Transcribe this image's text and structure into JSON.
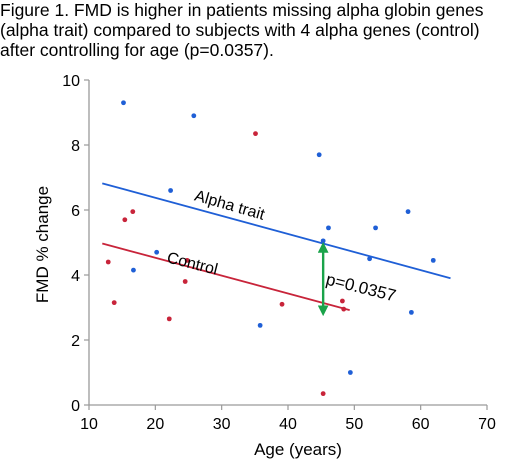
{
  "caption": {
    "lines": [
      "Figure 1. FMD is higher in patients missing alpha globin genes",
      "(alpha trait) compared to subjects with 4 alpha genes (control)",
      "after controlling for age (p=0.0357)."
    ]
  },
  "colors": {
    "alpha_trait": "#1f5fd6",
    "control": "#c8243a",
    "significance_arrow": "#1aa34a",
    "axis": "#9a9a9a"
  },
  "chart_data": {
    "type": "scatter",
    "xlabel": "Age (years)",
    "ylabel": "FMD % change",
    "xlim": [
      10,
      70
    ],
    "ylim": [
      0,
      10
    ],
    "x_ticks": [
      "10",
      "20",
      "30",
      "40",
      "50",
      "60",
      "70"
    ],
    "y_ticks": [
      "0",
      "2",
      "4",
      "6",
      "8",
      "10"
    ],
    "grid": false,
    "series": [
      {
        "name": "Alpha trait",
        "color": "#1f5fd6",
        "points": [
          [
            15.2,
            9.3
          ],
          [
            16.7,
            4.15
          ],
          [
            20.2,
            4.7
          ],
          [
            22.3,
            6.6
          ],
          [
            25.8,
            8.9
          ],
          [
            35.8,
            2.45
          ],
          [
            44.7,
            7.7
          ],
          [
            45.3,
            5.05
          ],
          [
            46.1,
            5.45
          ],
          [
            49.4,
            1.0
          ],
          [
            52.3,
            4.5
          ],
          [
            53.2,
            5.45
          ],
          [
            58.1,
            5.95
          ],
          [
            58.6,
            2.85
          ],
          [
            61.9,
            4.45
          ]
        ],
        "trend": [
          [
            12,
            6.82
          ],
          [
            64.5,
            3.9
          ]
        ]
      },
      {
        "name": "Control",
        "color": "#c8243a",
        "points": [
          [
            12.9,
            4.4
          ],
          [
            13.8,
            3.15
          ],
          [
            15.4,
            5.7
          ],
          [
            16.6,
            5.95
          ],
          [
            22.1,
            2.65
          ],
          [
            24.5,
            3.8
          ],
          [
            24.8,
            4.45
          ],
          [
            35.1,
            8.35
          ],
          [
            39.1,
            3.1
          ],
          [
            45.3,
            0.35
          ],
          [
            48.2,
            3.2
          ],
          [
            48.4,
            2.95
          ]
        ],
        "trend": [
          [
            12,
            4.97
          ],
          [
            49.3,
            2.92
          ]
        ]
      }
    ],
    "annotations": [
      {
        "text": "Alpha trait",
        "x": 31,
        "y": 6.0,
        "angle": 16
      },
      {
        "text": "Control",
        "x": 25.4,
        "y": 4.2,
        "angle": 14
      },
      {
        "text": "p=0.0357",
        "x": 50.8,
        "y": 3.45,
        "angle": 14
      }
    ],
    "significance_arrow": {
      "x": 45.3,
      "y_from": 4.85,
      "y_to": 2.9
    }
  }
}
